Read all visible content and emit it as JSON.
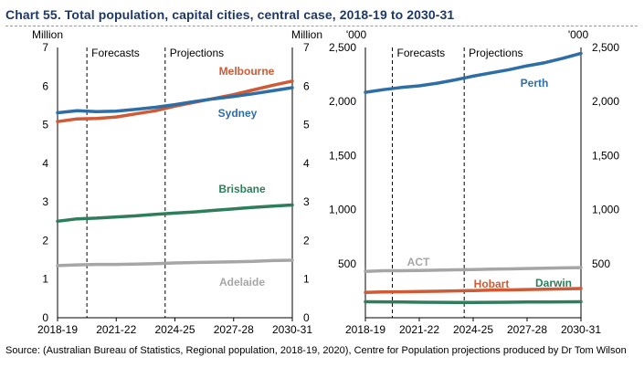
{
  "title": "Chart 55. Total population, capital cities, central case, 2018-19 to 2030-31",
  "source": "Source: (Australian Bureau of Statistics, Regional population, 2018-19, 2020), Centre for Population projections produced by Dr Tom Wilson",
  "colors": {
    "melbourne": "#d05a35",
    "sydney": "#2e6ea6",
    "brisbane": "#2e7d5b",
    "adelaide": "#a6a6a6",
    "perth": "#2e6ea6",
    "act": "#a6a6a6",
    "hobart": "#d05a35",
    "darwin": "#2e7d5b"
  },
  "chart_data": [
    {
      "type": "line",
      "unit_left": "Million",
      "unit_right": "Million",
      "x": [
        "2018-19",
        "2019-20",
        "2020-21",
        "2021-22",
        "2022-23",
        "2023-24",
        "2024-25",
        "2025-26",
        "2026-27",
        "2027-28",
        "2028-29",
        "2029-30",
        "2030-31"
      ],
      "x_tick_labels": [
        "2018-19",
        "2021-22",
        "2024-25",
        "2027-28",
        "2030-31"
      ],
      "ylim": [
        0,
        7
      ],
      "y_ticks": [
        "0",
        "1",
        "2",
        "3",
        "4",
        "5",
        "6",
        "7"
      ],
      "phase_labels": [
        "Forecasts",
        "Projections"
      ],
      "series": [
        {
          "name": "Melbourne",
          "color_key": "melbourne",
          "values": [
            5.08,
            5.15,
            5.16,
            5.2,
            5.28,
            5.36,
            5.48,
            5.58,
            5.68,
            5.78,
            5.9,
            6.02,
            6.13
          ]
        },
        {
          "name": "Sydney",
          "color_key": "sydney",
          "values": [
            5.31,
            5.36,
            5.34,
            5.35,
            5.4,
            5.45,
            5.52,
            5.6,
            5.67,
            5.73,
            5.8,
            5.88,
            5.96
          ]
        },
        {
          "name": "Brisbane",
          "color_key": "brisbane",
          "values": [
            2.5,
            2.56,
            2.58,
            2.61,
            2.64,
            2.68,
            2.71,
            2.74,
            2.78,
            2.82,
            2.86,
            2.89,
            2.92
          ]
        },
        {
          "name": "Adelaide",
          "color_key": "adelaide",
          "values": [
            1.35,
            1.37,
            1.38,
            1.38,
            1.39,
            1.4,
            1.42,
            1.43,
            1.44,
            1.45,
            1.46,
            1.48,
            1.49
          ]
        }
      ]
    },
    {
      "type": "line",
      "unit_left": "'000",
      "unit_right": "'000",
      "x": [
        "2018-19",
        "2019-20",
        "2020-21",
        "2021-22",
        "2022-23",
        "2023-24",
        "2024-25",
        "2025-26",
        "2026-27",
        "2027-28",
        "2028-29",
        "2029-30",
        "2030-31"
      ],
      "x_tick_labels": [
        "2018-19",
        "2021-22",
        "2024-25",
        "2027-28",
        "2030-31"
      ],
      "ylim": [
        0,
        2500
      ],
      "y_ticks": [
        "500",
        "1,000",
        "1,500",
        "2,000",
        "2,500"
      ],
      "y_tick_values": [
        500,
        1000,
        1500,
        2000,
        2500
      ],
      "phase_labels": [
        "Forecasts",
        "Projections"
      ],
      "series": [
        {
          "name": "Perth",
          "color_key": "perth",
          "values": [
            2085,
            2110,
            2130,
            2145,
            2170,
            2200,
            2235,
            2265,
            2295,
            2330,
            2360,
            2400,
            2445
          ]
        },
        {
          "name": "ACT",
          "color_key": "act",
          "values": [
            428,
            435,
            435,
            437,
            440,
            443,
            446,
            449,
            452,
            455,
            458,
            461,
            464
          ]
        },
        {
          "name": "Hobart",
          "color_key": "hobart",
          "values": [
            235,
            238,
            240,
            242,
            245,
            248,
            252,
            255,
            258,
            261,
            264,
            267,
            270
          ]
        },
        {
          "name": "Darwin",
          "color_key": "darwin",
          "values": [
            148,
            147,
            146,
            144,
            143,
            142,
            142,
            143,
            144,
            145,
            146,
            147,
            148
          ]
        }
      ]
    }
  ]
}
